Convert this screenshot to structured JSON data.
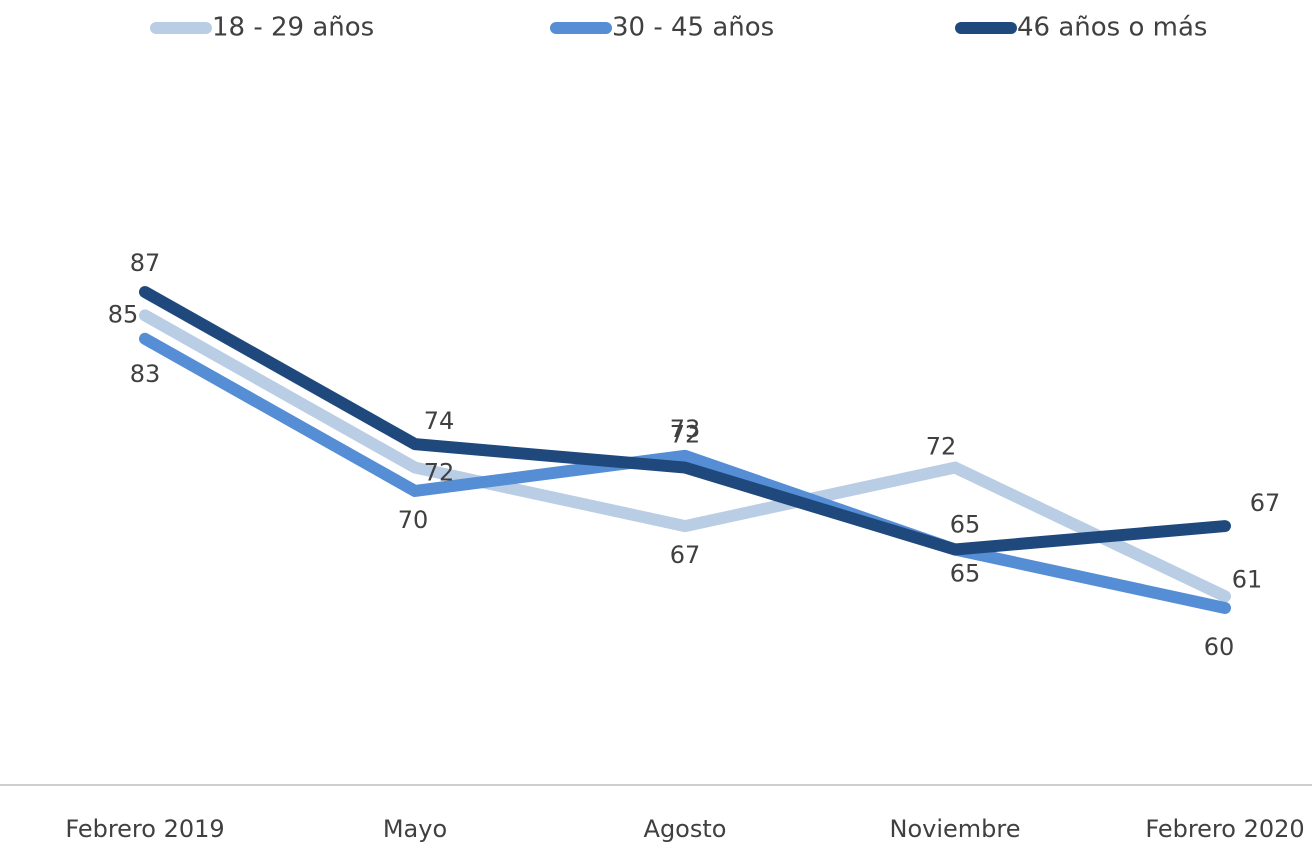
{
  "chart_data": {
    "type": "line",
    "categories": [
      "Febrero 2019",
      "Mayo",
      "Agosto",
      "Noviembre",
      "Febrero 2020"
    ],
    "series": [
      {
        "name": "18 - 29 años",
        "color": "#b9cde5",
        "values": [
          85,
          72,
          67,
          72,
          61
        ]
      },
      {
        "name": "30 - 45 años",
        "color": "#558ed5",
        "values": [
          83,
          70,
          73,
          65,
          60
        ]
      },
      {
        "name": "46 años o más",
        "color": "#1f497d",
        "values": [
          87,
          74,
          72,
          65,
          67
        ]
      }
    ]
  }
}
